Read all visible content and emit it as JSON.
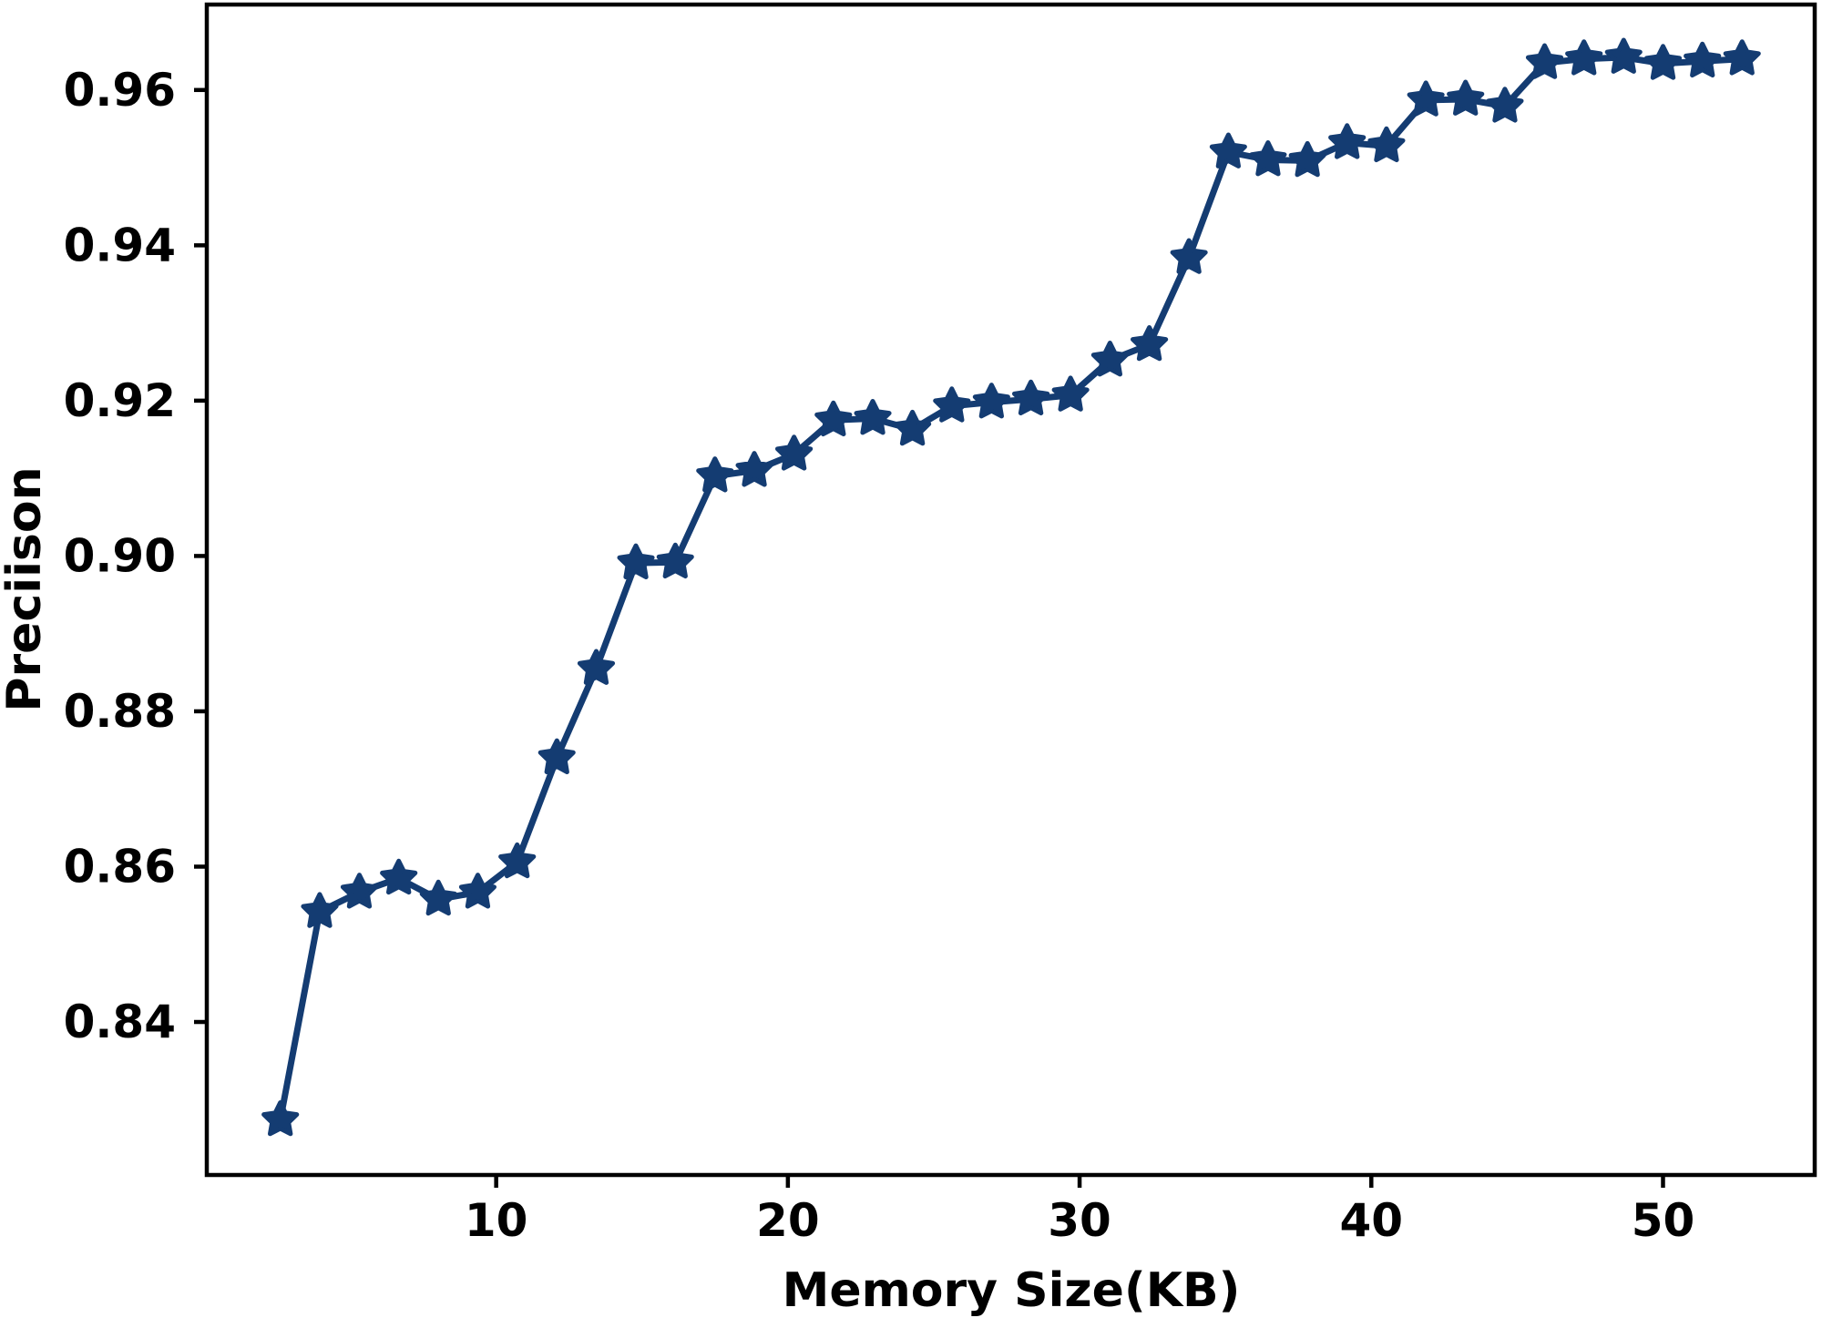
{
  "chart_data": {
    "type": "line",
    "title": "",
    "xlabel": "Memory Size(KB)",
    "ylabel": "Preciison",
    "x": [
      2.6,
      3.95,
      5.31,
      6.66,
      8.02,
      9.37,
      10.72,
      12.08,
      13.43,
      14.79,
      16.14,
      17.5,
      18.85,
      20.21,
      21.56,
      22.91,
      24.27,
      25.62,
      26.98,
      28.33,
      29.69,
      31.04,
      32.39,
      33.75,
      35.1,
      36.46,
      37.81,
      39.17,
      40.52,
      41.87,
      43.23,
      44.58,
      45.94,
      47.29,
      48.65,
      50.0,
      51.35,
      52.71
    ],
    "series": [
      {
        "name": "Precision",
        "values": [
          0.8274,
          0.8542,
          0.8567,
          0.8585,
          0.8558,
          0.8567,
          0.8606,
          0.874,
          0.8855,
          0.8991,
          0.8992,
          0.9103,
          0.911,
          0.9131,
          0.9175,
          0.9177,
          0.9163,
          0.9193,
          0.9198,
          0.9202,
          0.9207,
          0.9252,
          0.9272,
          0.9384,
          0.952,
          0.951,
          0.9509,
          0.9532,
          0.9528,
          0.9587,
          0.9588,
          0.9579,
          0.9635,
          0.964,
          0.9642,
          0.9634,
          0.9637,
          0.964
        ]
      }
    ],
    "xticks": [
      10,
      20,
      30,
      40,
      50
    ],
    "yticks": [
      0.84,
      0.86,
      0.88,
      0.9,
      0.92,
      0.94,
      0.96
    ],
    "xlim": [
      0.08,
      55.2
    ],
    "ylim": [
      0.8203,
      0.971
    ],
    "grid": false,
    "legend_position": "none",
    "marker": "star",
    "line_color": "#143c72",
    "axis_color": "#000000",
    "background_color": "#ffffff"
  }
}
